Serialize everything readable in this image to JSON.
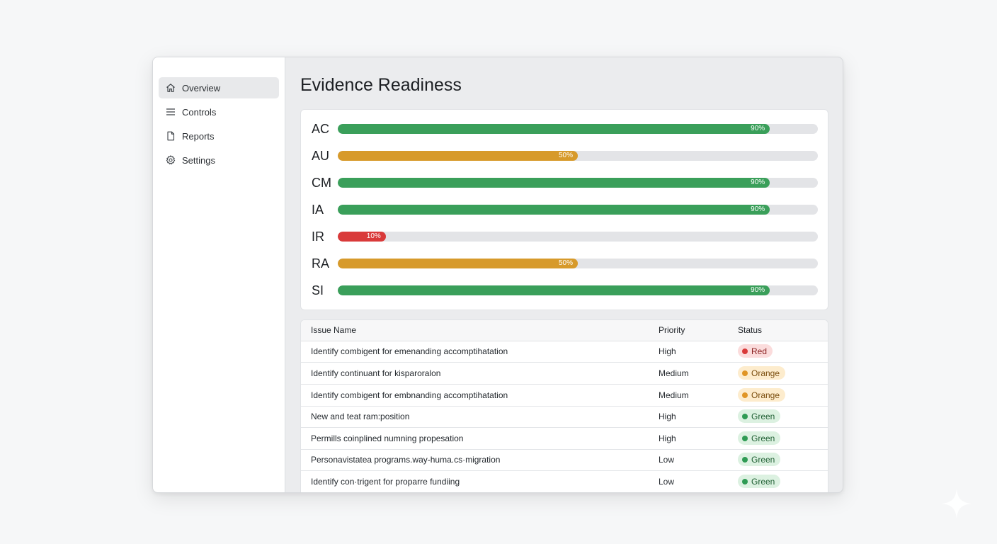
{
  "sidebar": {
    "items": [
      {
        "label": "Overview",
        "icon": "home-icon",
        "active": true
      },
      {
        "label": "Controls",
        "icon": "list-icon",
        "active": false
      },
      {
        "label": "Reports",
        "icon": "document-icon",
        "active": false
      },
      {
        "label": "Settings",
        "icon": "gear-icon",
        "active": false
      }
    ]
  },
  "main": {
    "title": "Evidence Readiness"
  },
  "colors": {
    "green": "#3a9f5a",
    "orange": "#d79a2b",
    "red": "#d93a3a"
  },
  "readiness": {
    "rows": [
      {
        "label": "AC",
        "percent": 90,
        "percent_label": "90%",
        "color": "green"
      },
      {
        "label": "AU",
        "percent": 50,
        "percent_label": "50%",
        "color": "orange"
      },
      {
        "label": "CM",
        "percent": 90,
        "percent_label": "90%",
        "color": "green"
      },
      {
        "label": "IA",
        "percent": 90,
        "percent_label": "90%",
        "color": "green"
      },
      {
        "label": "IR",
        "percent": 10,
        "percent_label": "10%",
        "color": "red"
      },
      {
        "label": "RA",
        "percent": 50,
        "percent_label": "50%",
        "color": "orange"
      },
      {
        "label": "SI",
        "percent": 90,
        "percent_label": "90%",
        "color": "green"
      }
    ]
  },
  "issues": {
    "headers": {
      "name": "Issue Name",
      "priority": "Priority",
      "status": "Status"
    },
    "rows": [
      {
        "name": "Identify combigent for emenanding accomptihatation",
        "priority": "High",
        "status": "Red"
      },
      {
        "name": "Identify continuant for kisparoralon",
        "priority": "Medium",
        "status": "Orange"
      },
      {
        "name": "Identify combigent for embnanding accomptihatation",
        "priority": "Medium",
        "status": "Orange"
      },
      {
        "name": "New and teat ram:position",
        "priority": "High",
        "status": "Green"
      },
      {
        "name": "Permills coinplined numning propesation",
        "priority": "High",
        "status": "Green"
      },
      {
        "name": "Personavistatea programs.way-huma.cs·migration",
        "priority": "Low",
        "status": "Green"
      },
      {
        "name": "Identify con·trigent for proparre fundiing",
        "priority": "Low",
        "status": "Green"
      }
    ]
  },
  "status_styles": {
    "Red": {
      "bg": "#fbdcdc",
      "dot": "#d93a3a",
      "text": "#8c2222"
    },
    "Orange": {
      "bg": "#fdeccd",
      "dot": "#e09525",
      "text": "#7a4d0e"
    },
    "Green": {
      "bg": "#dcf1e1",
      "dot": "#2f9b54",
      "text": "#1f5f33"
    }
  }
}
